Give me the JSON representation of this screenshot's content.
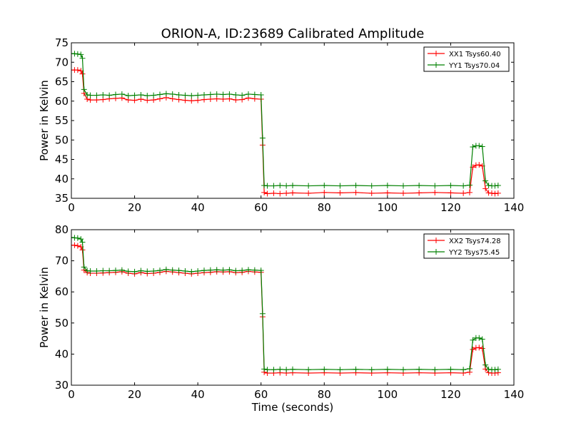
{
  "chart_data": [
    {
      "type": "line",
      "title": "ORION-A, ID:23689 Calibrated Amplitude",
      "xlabel": "",
      "ylabel": "Power in Kelvin",
      "xlim": [
        0,
        140
      ],
      "ylim": [
        35,
        75
      ],
      "xticks": [
        0,
        20,
        40,
        60,
        80,
        100,
        120,
        140
      ],
      "yticks": [
        35,
        40,
        45,
        50,
        55,
        60,
        65,
        70,
        75
      ],
      "xtick_labels": [
        "0",
        "20",
        "40",
        "60",
        "80",
        "100",
        "120",
        "140"
      ],
      "ytick_labels": [
        "35",
        "40",
        "45",
        "50",
        "55",
        "60",
        "65",
        "70",
        "75"
      ],
      "grid": false,
      "legend": "top-right",
      "series": [
        {
          "name": "XX1 Tsys60.40",
          "color": "#ff0000",
          "x": [
            0,
            1,
            2,
            3,
            3.5,
            4,
            5,
            6,
            8,
            10,
            12,
            14,
            16,
            18,
            20,
            22,
            24,
            26,
            28,
            30,
            32,
            34,
            36,
            38,
            40,
            42,
            44,
            46,
            48,
            50,
            52,
            54,
            56,
            58,
            60,
            60.5,
            61,
            62,
            64,
            66,
            68,
            70,
            75,
            80,
            85,
            90,
            95,
            100,
            105,
            110,
            115,
            120,
            124,
            126,
            127,
            128,
            129,
            130,
            131,
            132,
            133,
            134,
            135
          ],
          "y": [
            68,
            68,
            68,
            67.8,
            67,
            62,
            60.5,
            60.3,
            60.3,
            60.4,
            60.6,
            60.7,
            60.8,
            60.3,
            60.2,
            60.5,
            60.2,
            60.3,
            60.6,
            60.9,
            60.6,
            60.4,
            60.2,
            60.1,
            60.2,
            60.4,
            60.5,
            60.6,
            60.5,
            60.6,
            60.3,
            60.4,
            60.8,
            60.6,
            60.5,
            48.7,
            36.5,
            36.2,
            36.3,
            36.2,
            36.3,
            36.4,
            36.3,
            36.5,
            36.4,
            36.5,
            36.3,
            36.4,
            36.3,
            36.4,
            36.5,
            36.4,
            36.3,
            36.5,
            43,
            43.5,
            43.6,
            43.3,
            37.5,
            36.4,
            36.3,
            36.2,
            36.3
          ]
        },
        {
          "name": "YY1 Tsys70.04",
          "color": "#008000",
          "x": [
            0,
            1,
            2,
            3,
            3.5,
            4,
            5,
            6,
            8,
            10,
            12,
            14,
            16,
            18,
            20,
            22,
            24,
            26,
            28,
            30,
            32,
            34,
            36,
            38,
            40,
            42,
            44,
            46,
            48,
            50,
            52,
            54,
            56,
            58,
            60,
            60.5,
            61,
            62,
            64,
            66,
            68,
            70,
            75,
            80,
            85,
            90,
            95,
            100,
            105,
            110,
            115,
            120,
            124,
            126,
            127,
            128,
            129,
            130,
            131,
            132,
            133,
            134,
            135
          ],
          "y": [
            72.2,
            72.2,
            72.1,
            72,
            71,
            63,
            61.6,
            61.5,
            61.5,
            61.6,
            61.5,
            61.7,
            61.8,
            61.4,
            61.5,
            61.6,
            61.4,
            61.5,
            61.7,
            61.9,
            61.8,
            61.6,
            61.5,
            61.4,
            61.5,
            61.6,
            61.7,
            61.8,
            61.7,
            61.8,
            61.6,
            61.5,
            61.8,
            61.7,
            61.6,
            50.5,
            38.3,
            38.2,
            38.2,
            38.3,
            38.2,
            38.3,
            38.2,
            38.3,
            38.2,
            38.3,
            38.2,
            38.3,
            38.2,
            38.3,
            38.2,
            38.3,
            38.2,
            38.4,
            48.2,
            48.5,
            48.5,
            48.3,
            39.5,
            38.3,
            38.2,
            38.2,
            38.3
          ]
        }
      ]
    },
    {
      "type": "line",
      "title": "",
      "xlabel": "Time (seconds)",
      "ylabel": "Power in Kelvin",
      "xlim": [
        0,
        140
      ],
      "ylim": [
        30,
        80
      ],
      "xticks": [
        0,
        20,
        40,
        60,
        80,
        100,
        120,
        140
      ],
      "yticks": [
        30,
        40,
        50,
        60,
        70,
        80
      ],
      "xtick_labels": [
        "0",
        "20",
        "40",
        "60",
        "80",
        "100",
        "120",
        "140"
      ],
      "ytick_labels": [
        "30",
        "40",
        "50",
        "60",
        "70",
        "80"
      ],
      "grid": false,
      "legend": "top-right",
      "series": [
        {
          "name": "XX2 Tsys74.28",
          "color": "#ff0000",
          "x": [
            0,
            1,
            2,
            3,
            3.5,
            4,
            5,
            6,
            8,
            10,
            12,
            14,
            16,
            18,
            20,
            22,
            24,
            26,
            28,
            30,
            32,
            34,
            36,
            38,
            40,
            42,
            44,
            46,
            48,
            50,
            52,
            54,
            56,
            58,
            60,
            60.5,
            61,
            62,
            64,
            66,
            68,
            70,
            75,
            80,
            85,
            90,
            95,
            100,
            105,
            110,
            115,
            120,
            124,
            126,
            127,
            128,
            129,
            130,
            131,
            132,
            133,
            134,
            135
          ],
          "y": [
            75,
            75,
            74.8,
            74.5,
            73.5,
            67,
            66.2,
            66,
            66,
            66.1,
            66.2,
            66.3,
            66.5,
            66,
            65.8,
            66.2,
            65.9,
            66,
            66.3,
            66.6,
            66.4,
            66.2,
            66,
            65.8,
            66,
            66.2,
            66.3,
            66.5,
            66.4,
            66.5,
            66.2,
            66.3,
            66.6,
            66.4,
            66.3,
            52,
            34.2,
            33.9,
            33.9,
            34,
            33.9,
            34,
            33.9,
            34,
            33.9,
            34,
            33.9,
            34,
            33.9,
            34,
            33.9,
            34,
            33.9,
            34.2,
            41.5,
            42,
            42.1,
            41.8,
            35.2,
            34,
            33.9,
            33.9,
            34
          ]
        },
        {
          "name": "YY2 Tsys75.45",
          "color": "#008000",
          "x": [
            0,
            1,
            2,
            3,
            3.5,
            4,
            5,
            6,
            8,
            10,
            12,
            14,
            16,
            18,
            20,
            22,
            24,
            26,
            28,
            30,
            32,
            34,
            36,
            38,
            40,
            42,
            44,
            46,
            48,
            50,
            52,
            54,
            56,
            58,
            60,
            60.5,
            61,
            62,
            64,
            66,
            68,
            70,
            75,
            80,
            85,
            90,
            95,
            100,
            105,
            110,
            115,
            120,
            124,
            126,
            127,
            128,
            129,
            130,
            131,
            132,
            133,
            134,
            135
          ],
          "y": [
            77.5,
            77.4,
            77.3,
            77,
            76,
            68,
            66.8,
            66.7,
            66.7,
            66.8,
            66.8,
            66.9,
            67,
            66.6,
            66.5,
            66.8,
            66.6,
            66.7,
            66.9,
            67.2,
            67,
            66.9,
            66.7,
            66.5,
            66.7,
            66.9,
            67,
            67.1,
            67,
            67.1,
            66.8,
            66.9,
            67.1,
            67,
            66.9,
            53,
            35.2,
            35,
            35,
            35.1,
            35,
            35.1,
            35,
            35.1,
            35,
            35.1,
            35,
            35.1,
            35,
            35.1,
            35,
            35.1,
            35,
            35.3,
            44.5,
            45.2,
            45.2,
            44.8,
            36.5,
            35.1,
            35,
            35,
            35.1
          ]
        }
      ]
    }
  ]
}
